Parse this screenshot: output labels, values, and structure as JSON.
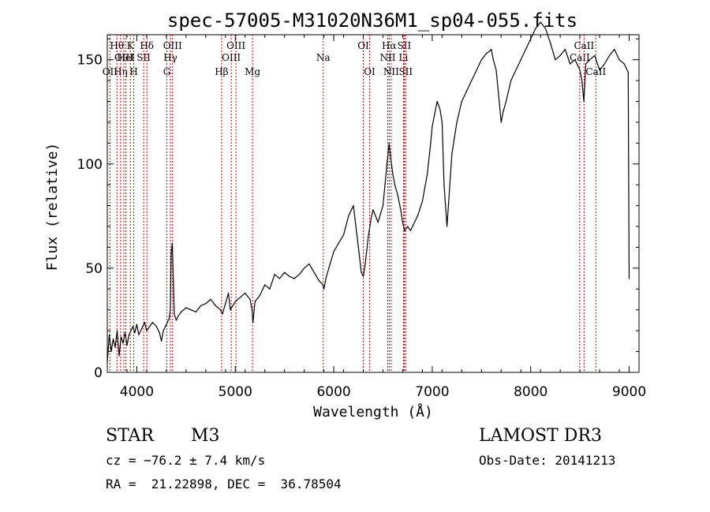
{
  "chart_data": {
    "type": "line",
    "title": "spec-57005-M31020N36M1_sp04-055.fits",
    "xlabel": "Wavelength (Å)",
    "ylabel": "Flux (relative)",
    "xlim": [
      3700,
      9100
    ],
    "ylim": [
      0,
      162
    ],
    "xticks": [
      4000,
      5000,
      6000,
      7000,
      8000,
      9000
    ],
    "yticks": [
      0,
      50,
      100,
      150
    ],
    "series": [
      {
        "name": "flux",
        "x": [
          3700,
          3720,
          3740,
          3760,
          3780,
          3800,
          3820,
          3840,
          3860,
          3880,
          3900,
          3920,
          3940,
          3960,
          3980,
          4000,
          4020,
          4050,
          4080,
          4100,
          4130,
          4160,
          4200,
          4230,
          4250,
          4270,
          4290,
          4310,
          4330,
          4340,
          4350,
          4360,
          4380,
          4400,
          4420,
          4450,
          4500,
          4550,
          4600,
          4650,
          4700,
          4750,
          4800,
          4850,
          4860,
          4870,
          4900,
          4930,
          4950,
          5000,
          5050,
          5100,
          5150,
          5170,
          5180,
          5200,
          5250,
          5300,
          5350,
          5400,
          5450,
          5500,
          5550,
          5600,
          5650,
          5700,
          5750,
          5800,
          5850,
          5890,
          5900,
          5920,
          5950,
          6000,
          6050,
          6100,
          6150,
          6200,
          6250,
          6280,
          6300,
          6320,
          6350,
          6380,
          6400,
          6450,
          6500,
          6520,
          6540,
          6563,
          6580,
          6600,
          6620,
          6650,
          6680,
          6700,
          6720,
          6750,
          6780,
          6800,
          6850,
          6900,
          6950,
          6980,
          7000,
          7050,
          7080,
          7100,
          7120,
          7150,
          7200,
          7250,
          7300,
          7350,
          7400,
          7450,
          7500,
          7550,
          7580,
          7600,
          7620,
          7650,
          7680,
          7700,
          7720,
          7750,
          7800,
          7850,
          7900,
          7950,
          8000,
          8050,
          8100,
          8150,
          8200,
          8250,
          8300,
          8350,
          8400,
          8450,
          8500,
          8520,
          8540,
          8560,
          8600,
          8650,
          8700,
          8750,
          8800,
          8850,
          8900,
          8950,
          8990,
          9000
        ],
        "values": [
          5,
          18,
          10,
          16,
          12,
          20,
          8,
          17,
          14,
          19,
          13,
          18,
          20,
          22,
          19,
          23,
          18,
          21,
          24,
          20,
          22,
          24,
          22,
          19,
          15,
          20,
          22,
          24,
          26,
          30,
          58,
          62,
          28,
          25,
          27,
          29,
          31,
          30,
          29,
          32,
          33,
          35,
          32,
          30,
          29,
          28,
          33,
          38,
          30,
          34,
          36,
          38,
          35,
          30,
          24,
          34,
          37,
          42,
          40,
          47,
          45,
          48,
          46,
          45,
          47,
          50,
          52,
          48,
          44,
          42,
          40,
          45,
          50,
          58,
          62,
          66,
          75,
          80,
          60,
          48,
          46,
          52,
          65,
          74,
          78,
          72,
          80,
          90,
          100,
          110,
          102,
          95,
          90,
          85,
          78,
          72,
          68,
          70,
          68,
          70,
          75,
          82,
          95,
          108,
          118,
          130,
          126,
          120,
          90,
          70,
          105,
          120,
          130,
          135,
          140,
          145,
          150,
          153,
          154,
          155,
          150,
          145,
          130,
          120,
          125,
          130,
          140,
          145,
          150,
          155,
          160,
          165,
          168,
          165,
          158,
          150,
          152,
          155,
          148,
          150,
          145,
          140,
          130,
          148,
          150,
          152,
          145,
          148,
          152,
          155,
          150,
          148,
          144,
          45
        ],
        "stroke": "#000000"
      }
    ],
    "emission_lines": [
      {
        "label": "Hθ",
        "wl": 3798,
        "row": 1
      },
      {
        "label": "OII",
        "wl": 3727,
        "row": 3
      },
      {
        "label": "Hη",
        "wl": 3835,
        "row": 3
      },
      {
        "label": "K",
        "wl": 3934,
        "row": 1
      },
      {
        "label": "H",
        "wl": 3969,
        "row": 3
      },
      {
        "label": "OIII",
        "wl": 3868,
        "row": 2
      },
      {
        "label": "HeI",
        "wl": 3889,
        "row": 2
      },
      {
        "label": "SII",
        "wl": 4069,
        "row": 2
      },
      {
        "label": "Hδ",
        "wl": 4102,
        "row": 1
      },
      {
        "label": "G",
        "wl": 4305,
        "row": 3
      },
      {
        "label": "Hγ",
        "wl": 4341,
        "row": 2
      },
      {
        "label": "OIII",
        "wl": 4363,
        "row": 1
      },
      {
        "label": "Hβ",
        "wl": 4861,
        "row": 3
      },
      {
        "label": "OIII",
        "wl": 4959,
        "row": 2
      },
      {
        "label": "OIII",
        "wl": 5007,
        "row": 1
      },
      {
        "label": "Mg",
        "wl": 5175,
        "row": 3
      },
      {
        "label": "Na",
        "wl": 5893,
        "row": 2
      },
      {
        "label": "OI",
        "wl": 6300,
        "row": 1
      },
      {
        "label": "OI",
        "wl": 6364,
        "row": 3
      },
      {
        "label": "NII",
        "wl": 6548,
        "row": 2
      },
      {
        "label": "Hα",
        "wl": 6563,
        "row": 1
      },
      {
        "label": "NII",
        "wl": 6583,
        "row": 3
      },
      {
        "label": "Li",
        "wl": 6708,
        "row": 2
      },
      {
        "label": "SII",
        "wl": 6716,
        "row": 1
      },
      {
        "label": "SII",
        "wl": 6731,
        "row": 3
      },
      {
        "label": "CaII",
        "wl": 8498,
        "row": 2
      },
      {
        "label": "CaII",
        "wl": 8542,
        "row": 1
      },
      {
        "label": "CaII",
        "wl": 8662,
        "row": 3
      }
    ],
    "line_color": "#c00000"
  },
  "info": {
    "class": "STAR",
    "subclass": "M3",
    "cz": "cz = −76.2 ± 7.4 km/s",
    "coords": "RA =  21.22898, DEC =  36.78504",
    "survey": "LAMOST DR3",
    "obs_date": "Obs-Date: 20141213"
  }
}
